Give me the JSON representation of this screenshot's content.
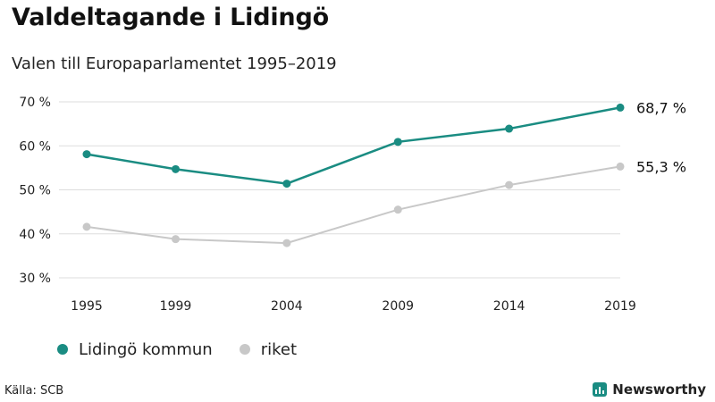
{
  "title": "Valdeltagande i Lidingö",
  "subtitle": "Valen till Europaparlamentet 1995–2019",
  "source": "Källa: SCB",
  "brand": {
    "name": "Newsworthy",
    "icon": "bar-chart-icon",
    "color": "#1a8c82"
  },
  "chart_data": {
    "type": "line",
    "x": [
      "1995",
      "1999",
      "2004",
      "2009",
      "2014",
      "2019"
    ],
    "series": [
      {
        "name": "Lidingö kommun",
        "color": "#1a8c82",
        "values": [
          58.1,
          54.7,
          51.4,
          60.9,
          63.9,
          68.7
        ],
        "end_label": "68,7 %"
      },
      {
        "name": "riket",
        "color": "#c8c8c8",
        "values": [
          41.6,
          38.8,
          37.9,
          45.5,
          51.1,
          55.3
        ],
        "end_label": "55,3 %"
      }
    ],
    "ylim": [
      30,
      70
    ],
    "y_ticks": [
      {
        "value": 70,
        "label": "70 %"
      },
      {
        "value": 60,
        "label": "60 %"
      },
      {
        "value": 50,
        "label": "50 %"
      },
      {
        "value": 40,
        "label": "40 %"
      },
      {
        "value": 30,
        "label": "30 %"
      }
    ],
    "grid": true,
    "legend_position": "bottom-left"
  }
}
